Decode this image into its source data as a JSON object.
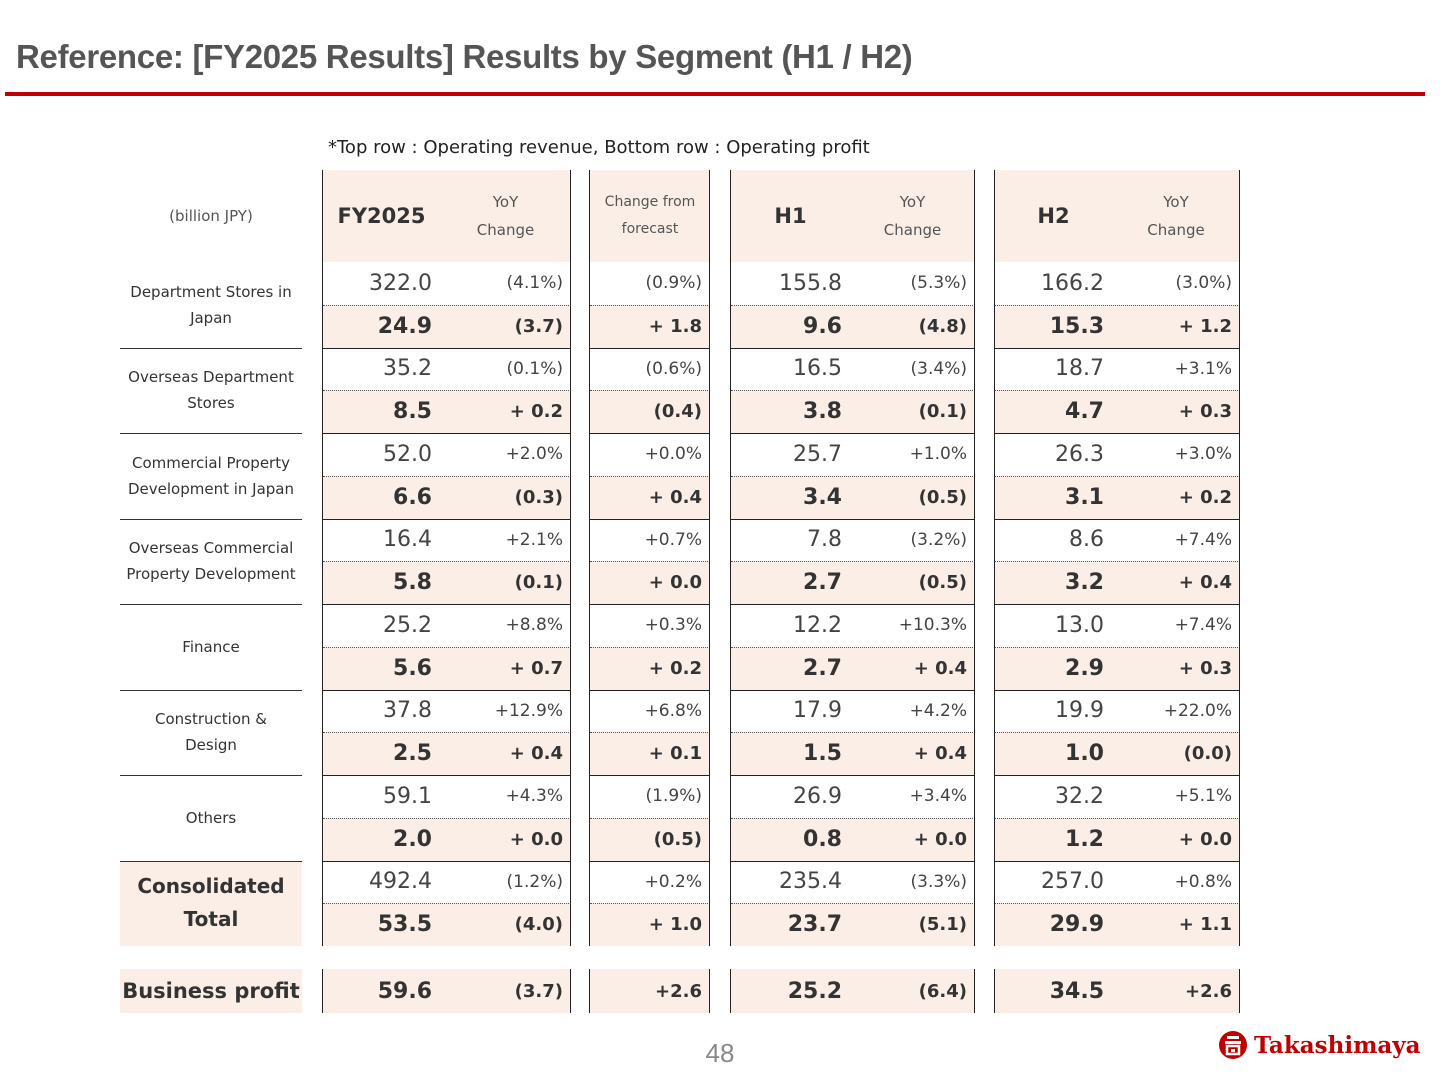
{
  "title": "Reference:  [FY2025 Results] Results by Segment (H1 / H2)",
  "note": "*Top row : Operating revenue, Bottom row : Operating profit",
  "unit": "(billion JPY)",
  "headers": {
    "fy": "FY2025",
    "yoy_line1": "YoY",
    "yoy_line2": "Change",
    "forecast_line1": "Change from",
    "forecast_line2": "forecast",
    "h1": "H1",
    "h2": "H2"
  },
  "segments": [
    {
      "label": [
        "Department Stores in",
        "Japan"
      ],
      "revenue": [
        "322.0",
        "(4.1%)",
        "(0.9%)",
        "155.8",
        "(5.3%)",
        "166.2",
        "(3.0%)"
      ],
      "profit": [
        "24.9",
        "(3.7)",
        "+ 1.8",
        "9.6",
        "(4.8)",
        "15.3",
        "+ 1.2"
      ]
    },
    {
      "label": [
        "Overseas Department",
        "Stores"
      ],
      "revenue": [
        "35.2",
        "(0.1%)",
        "(0.6%)",
        "16.5",
        "(3.4%)",
        "18.7",
        "+3.1%"
      ],
      "profit": [
        "8.5",
        "+ 0.2",
        "(0.4)",
        "3.8",
        "(0.1)",
        "4.7",
        "+ 0.3"
      ]
    },
    {
      "label": [
        "Commercial Property",
        "Development in Japan"
      ],
      "revenue": [
        "52.0",
        "+2.0%",
        "+0.0%",
        "25.7",
        "+1.0%",
        "26.3",
        "+3.0%"
      ],
      "profit": [
        "6.6",
        "(0.3)",
        "+ 0.4",
        "3.4",
        "(0.5)",
        "3.1",
        "+ 0.2"
      ]
    },
    {
      "label": [
        "Overseas Commercial",
        "Property Development"
      ],
      "revenue": [
        "16.4",
        "+2.1%",
        "+0.7%",
        "7.8",
        "(3.2%)",
        "8.6",
        "+7.4%"
      ],
      "profit": [
        "5.8",
        "(0.1)",
        "+ 0.0",
        "2.7",
        "(0.5)",
        "3.2",
        "+ 0.4"
      ]
    },
    {
      "label": [
        "Finance",
        ""
      ],
      "revenue": [
        "25.2",
        "+8.8%",
        "+0.3%",
        "12.2",
        "+10.3%",
        "13.0",
        "+7.4%"
      ],
      "profit": [
        "5.6",
        "+ 0.7",
        "+ 0.2",
        "2.7",
        "+ 0.4",
        "2.9",
        "+ 0.3"
      ]
    },
    {
      "label": [
        "Construction &",
        "Design"
      ],
      "revenue": [
        "37.8",
        "+12.9%",
        "+6.8%",
        "17.9",
        "+4.2%",
        "19.9",
        "+22.0%"
      ],
      "profit": [
        "2.5",
        "+ 0.4",
        "+ 0.1",
        "1.5",
        "+ 0.4",
        "1.0",
        "(0.0)"
      ]
    },
    {
      "label": [
        "Others",
        ""
      ],
      "revenue": [
        "59.1",
        "+4.3%",
        "(1.9%)",
        "26.9",
        "+3.4%",
        "32.2",
        "+5.1%"
      ],
      "profit": [
        "2.0",
        "+ 0.0",
        "(0.5)",
        "0.8",
        "+ 0.0",
        "1.2",
        "+ 0.0"
      ]
    },
    {
      "label": [
        "Consolidated",
        "Total"
      ],
      "revenue": [
        "492.4",
        "(1.2%)",
        "+0.2%",
        "235.4",
        "(3.3%)",
        "257.0",
        "+0.8%"
      ],
      "profit": [
        "53.5",
        "(4.0)",
        "+ 1.0",
        "23.7",
        "(5.1)",
        "29.9",
        "+ 1.1"
      ]
    }
  ],
  "business_profit": {
    "label": "Business profit",
    "values": [
      "59.6",
      "(3.7)",
      "+2.6",
      "25.2",
      "(6.4)",
      "34.5",
      "+2.6"
    ]
  },
  "page_number": "48",
  "logo": {
    "text": "Takashimaya",
    "icon": "takashimaya-emblem-icon",
    "color": "#c00000"
  },
  "colors": {
    "accent": "#c00000",
    "highlight": "#fbeee6"
  }
}
